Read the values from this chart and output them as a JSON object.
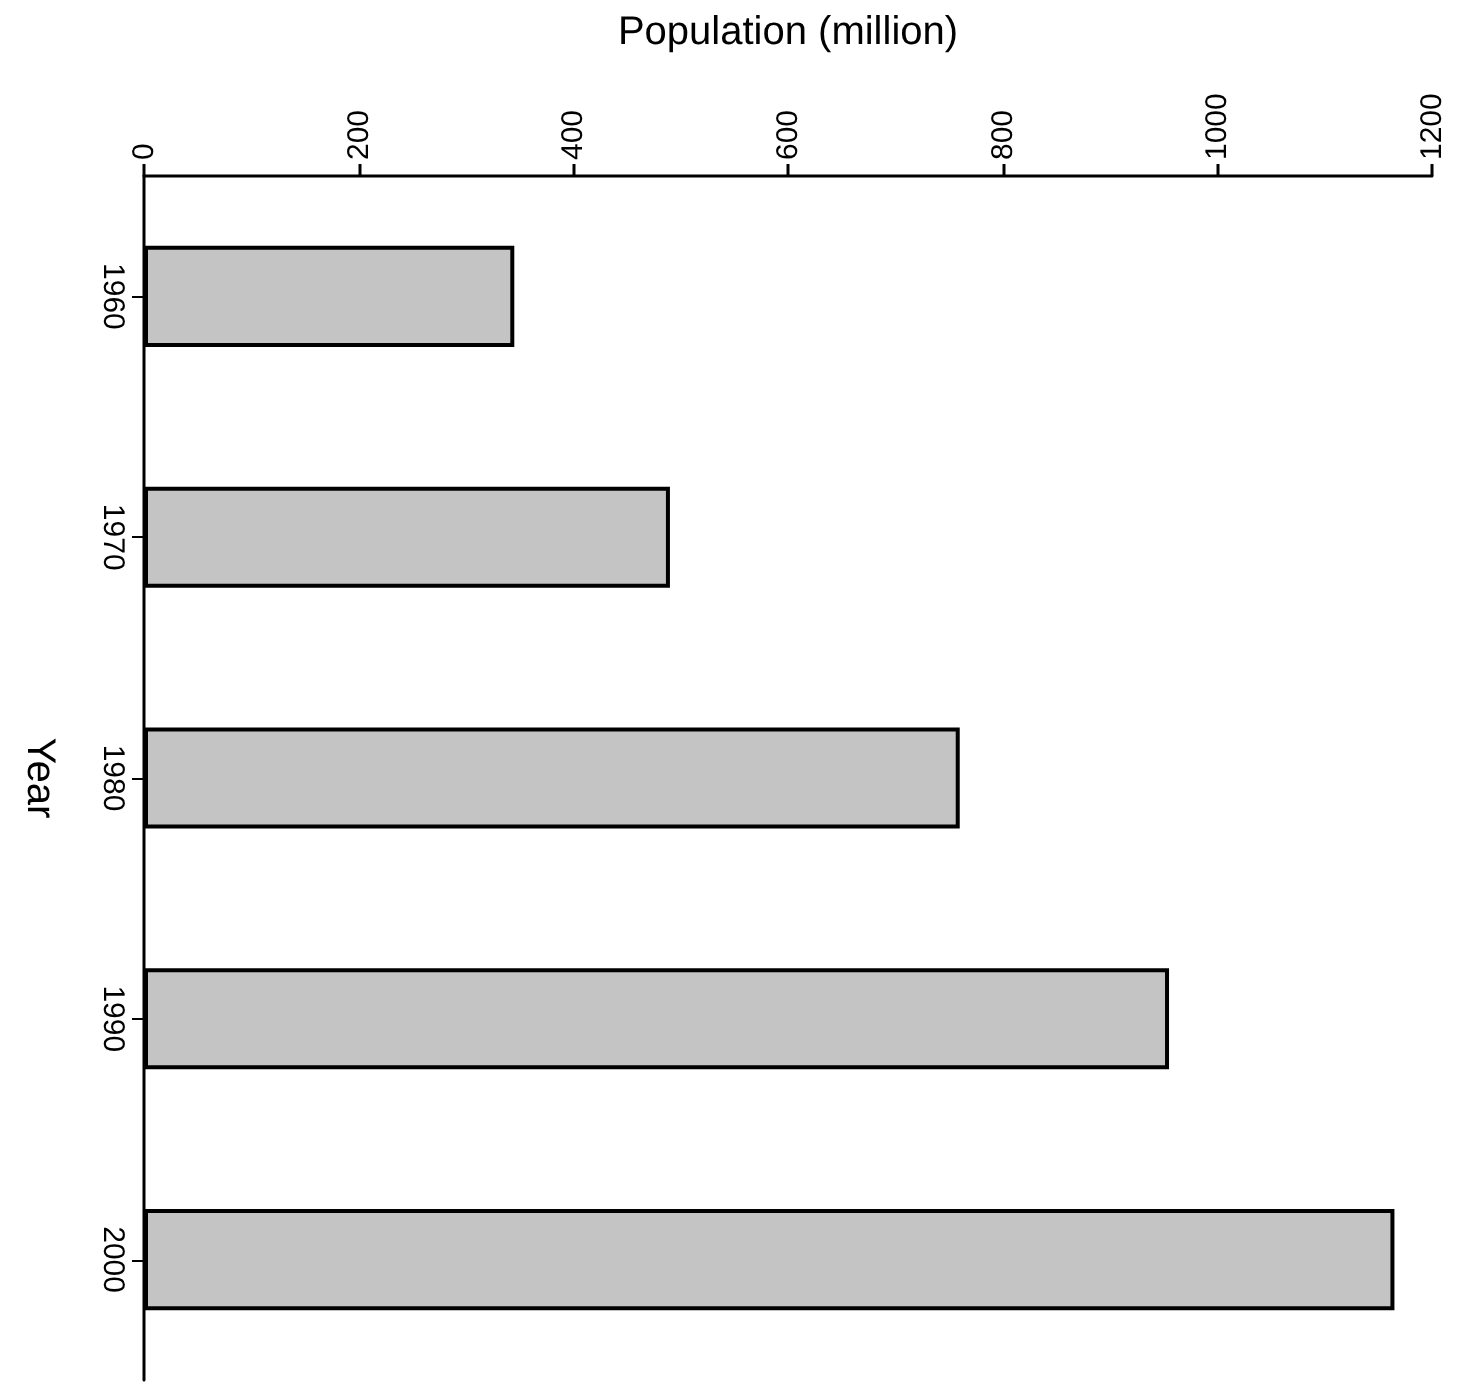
{
  "chart_data": {
    "type": "bar",
    "orientation": "horizontal",
    "xlabel": "Population (million)",
    "ylabel": "Year",
    "categories": [
      "1960",
      "1970",
      "1980",
      "1990",
      "2000"
    ],
    "series": [
      {
        "color": "#c4c4c4",
        "values": [
          345,
          490,
          760,
          955,
          1165
        ]
      }
    ],
    "xlim": [
      0,
      1200
    ],
    "xticks": [
      0,
      200,
      400,
      600,
      800,
      1000,
      1200
    ]
  }
}
